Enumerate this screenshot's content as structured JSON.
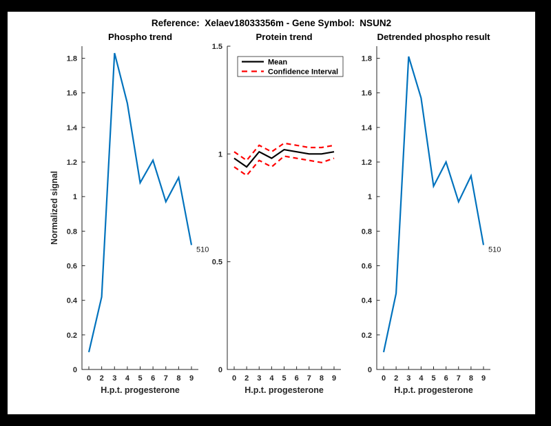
{
  "figure": {
    "title": "Reference:  Xelaev18033356m - Gene Symbol:  NSUN2",
    "background_color": "#000000",
    "canvas_color": "#ffffff"
  },
  "colors": {
    "phospho_line": "#0072BD",
    "mean_line": "#000000",
    "confidence_line": "#ff0000",
    "axis": "#262626",
    "title_text": "#000000"
  },
  "chart_data": [
    {
      "type": "line",
      "title": "Phospho trend",
      "xlabel": "H.p.t. progesterone",
      "ylabel": "Normalized signal",
      "x_tick_labels": [
        "0",
        "2",
        "3",
        "4",
        "5",
        "6",
        "7",
        "8",
        "9"
      ],
      "y_ticks": [
        "0",
        "0.2",
        "0.4",
        "0.6",
        "0.8",
        "1",
        "1.2",
        "1.4",
        "1.6",
        "1.8"
      ],
      "ylim": [
        0,
        1.87
      ],
      "grid": false,
      "series": [
        {
          "name": "phospho-signal",
          "color": "#0072BD",
          "dash": "none",
          "values": [
            0.1,
            0.42,
            1.83,
            1.54,
            1.08,
            1.21,
            0.97,
            1.11,
            0.72
          ]
        }
      ],
      "end_label": "510"
    },
    {
      "type": "line",
      "title": "Protein trend",
      "xlabel": "H.p.t. progesterone",
      "ylabel": "",
      "x_tick_labels": [
        "0",
        "2",
        "3",
        "4",
        "5",
        "6",
        "7",
        "8",
        "9"
      ],
      "y_ticks": [
        "0",
        "0.5",
        "1",
        "1.5"
      ],
      "ylim": [
        0,
        1.5
      ],
      "grid": false,
      "legend": {
        "position": "top-left",
        "entries": [
          {
            "label": "Mean",
            "color": "#000000",
            "dash": "none"
          },
          {
            "label": "Confidence Interval",
            "color": "#ff0000",
            "dash": "dashed"
          }
        ]
      },
      "series": [
        {
          "name": "mean",
          "color": "#000000",
          "dash": "none",
          "values": [
            0.98,
            0.94,
            1.01,
            0.98,
            1.02,
            1.01,
            1.0,
            1.0,
            1.01
          ]
        },
        {
          "name": "ci-upper",
          "color": "#ff0000",
          "dash": "dashed",
          "values": [
            1.01,
            0.97,
            1.04,
            1.01,
            1.05,
            1.04,
            1.03,
            1.03,
            1.04
          ]
        },
        {
          "name": "ci-lower",
          "color": "#ff0000",
          "dash": "dashed",
          "values": [
            0.94,
            0.9,
            0.97,
            0.94,
            0.99,
            0.98,
            0.97,
            0.96,
            0.98
          ]
        }
      ]
    },
    {
      "type": "line",
      "title": "Detrended phospho result",
      "xlabel": "H.p.t. progesterone",
      "ylabel": "",
      "x_tick_labels": [
        "0",
        "2",
        "3",
        "4",
        "5",
        "6",
        "7",
        "8",
        "9"
      ],
      "y_ticks": [
        "0",
        "0.2",
        "0.4",
        "0.6",
        "0.8",
        "1",
        "1.2",
        "1.4",
        "1.6",
        "1.8"
      ],
      "ylim": [
        0,
        1.87
      ],
      "grid": false,
      "series": [
        {
          "name": "detrended-phospho-signal",
          "color": "#0072BD",
          "dash": "none",
          "values": [
            0.1,
            0.44,
            1.81,
            1.57,
            1.06,
            1.2,
            0.97,
            1.12,
            0.72
          ]
        }
      ],
      "end_label": "510"
    }
  ]
}
